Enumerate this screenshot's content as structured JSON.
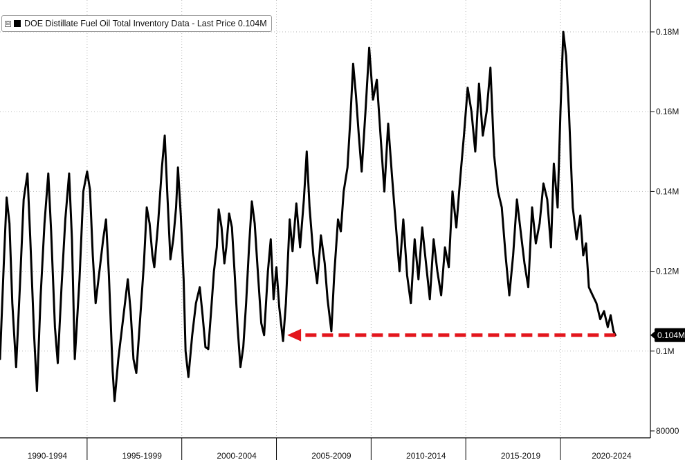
{
  "chart_data": {
    "type": "line",
    "title": "",
    "xlabel": "",
    "ylabel": "",
    "legend": {
      "label": "DOE Distillate Fuel Oil Total Inventory Data - Last Price 0.104M",
      "placement": "top-left",
      "toggle_symbol": "⊞"
    },
    "xlim": [
      1990.0,
      2024.35
    ],
    "ylim": [
      80000,
      185000
    ],
    "grid": true,
    "x_ticks": [
      {
        "label": "1990-1994",
        "center": 1992.5
      },
      {
        "label": "1995-1999",
        "center": 1997.5
      },
      {
        "label": "2000-2004",
        "center": 2002.5
      },
      {
        "label": "2005-2009",
        "center": 2007.5
      },
      {
        "label": "2010-2014",
        "center": 2012.5
      },
      {
        "label": "2015-2019",
        "center": 2017.5
      },
      {
        "label": "2020-2024",
        "center": 2022.3
      }
    ],
    "x_gridlines": [
      1994.6,
      1999.6,
      2004.6,
      2009.6,
      2014.6,
      2019.6
    ],
    "y_ticks": [
      {
        "value": 180000,
        "label": "0.18M"
      },
      {
        "value": 160000,
        "label": "0.16M"
      },
      {
        "value": 140000,
        "label": "0.14M"
      },
      {
        "value": 120000,
        "label": "0.12M"
      },
      {
        "value": 100000,
        "label": "0.1M"
      },
      {
        "value": 80000,
        "label": "80000"
      }
    ],
    "last_price": {
      "value": 104000,
      "label": "0.104M"
    },
    "series": [
      {
        "name": "DOE Distillate Fuel Oil Total Inventory Data",
        "color": "#000000",
        "points": [
          [
            1990.0,
            98000
          ],
          [
            1990.2,
            122000
          ],
          [
            1990.35,
            138500
          ],
          [
            1990.5,
            132000
          ],
          [
            1990.65,
            112000
          ],
          [
            1990.85,
            96000
          ],
          [
            1991.05,
            116000
          ],
          [
            1991.25,
            138000
          ],
          [
            1991.45,
            144500
          ],
          [
            1991.6,
            128000
          ],
          [
            1991.8,
            104000
          ],
          [
            1991.95,
            90000
          ],
          [
            1992.15,
            114000
          ],
          [
            1992.35,
            132000
          ],
          [
            1992.55,
            144500
          ],
          [
            1992.7,
            130000
          ],
          [
            1992.9,
            106000
          ],
          [
            1993.05,
            97000
          ],
          [
            1993.25,
            116000
          ],
          [
            1993.45,
            133000
          ],
          [
            1993.65,
            144500
          ],
          [
            1993.8,
            128000
          ],
          [
            1993.95,
            98000
          ],
          [
            1994.2,
            118000
          ],
          [
            1994.4,
            140000
          ],
          [
            1994.6,
            145000
          ],
          [
            1994.75,
            140500
          ],
          [
            1994.9,
            124000
          ],
          [
            1995.05,
            112000
          ],
          [
            1995.25,
            120000
          ],
          [
            1995.45,
            128000
          ],
          [
            1995.6,
            133000
          ],
          [
            1995.75,
            119000
          ],
          [
            1995.95,
            95000
          ],
          [
            1996.05,
            87500
          ],
          [
            1996.25,
            98000
          ],
          [
            1996.45,
            106000
          ],
          [
            1996.6,
            112000
          ],
          [
            1996.75,
            118000
          ],
          [
            1996.9,
            110000
          ],
          [
            1997.05,
            98000
          ],
          [
            1997.2,
            94500
          ],
          [
            1997.4,
            108000
          ],
          [
            1997.6,
            122000
          ],
          [
            1997.75,
            136000
          ],
          [
            1997.9,
            132000
          ],
          [
            1998.05,
            124000
          ],
          [
            1998.15,
            121000
          ],
          [
            1998.35,
            132000
          ],
          [
            1998.55,
            146000
          ],
          [
            1998.7,
            154000
          ],
          [
            1998.85,
            138000
          ],
          [
            1999.0,
            123000
          ],
          [
            1999.15,
            128000
          ],
          [
            1999.3,
            136000
          ],
          [
            1999.4,
            146000
          ],
          [
            1999.55,
            134000
          ],
          [
            1999.7,
            118000
          ],
          [
            1999.8,
            100000
          ],
          [
            1999.95,
            93500
          ],
          [
            2000.15,
            104000
          ],
          [
            2000.35,
            112000
          ],
          [
            2000.55,
            116000
          ],
          [
            2000.7,
            109000
          ],
          [
            2000.85,
            101000
          ],
          [
            2001.0,
            100500
          ],
          [
            2001.15,
            110000
          ],
          [
            2001.3,
            120000
          ],
          [
            2001.45,
            126000
          ],
          [
            2001.55,
            135500
          ],
          [
            2001.7,
            131000
          ],
          [
            2001.85,
            122000
          ],
          [
            2001.95,
            126000
          ],
          [
            2002.1,
            134500
          ],
          [
            2002.25,
            131000
          ],
          [
            2002.4,
            119000
          ],
          [
            2002.55,
            106000
          ],
          [
            2002.7,
            96000
          ],
          [
            2002.85,
            101000
          ],
          [
            2003.0,
            112000
          ],
          [
            2003.15,
            126000
          ],
          [
            2003.3,
            137500
          ],
          [
            2003.45,
            132000
          ],
          [
            2003.6,
            121000
          ],
          [
            2003.8,
            107000
          ],
          [
            2003.95,
            104000
          ],
          [
            2004.15,
            120000
          ],
          [
            2004.3,
            128000
          ],
          [
            2004.45,
            113000
          ],
          [
            2004.6,
            121000
          ],
          [
            2004.75,
            111000
          ],
          [
            2004.95,
            102500
          ],
          [
            2005.1,
            112000
          ],
          [
            2005.3,
            133000
          ],
          [
            2005.45,
            125000
          ],
          [
            2005.65,
            137000
          ],
          [
            2005.85,
            126000
          ],
          [
            2006.05,
            138000
          ],
          [
            2006.2,
            150000
          ],
          [
            2006.35,
            136000
          ],
          [
            2006.55,
            124000
          ],
          [
            2006.75,
            117000
          ],
          [
            2006.95,
            129000
          ],
          [
            2007.15,
            122000
          ],
          [
            2007.3,
            113000
          ],
          [
            2007.5,
            105000
          ],
          [
            2007.65,
            119000
          ],
          [
            2007.85,
            133000
          ],
          [
            2008.0,
            130000
          ],
          [
            2008.15,
            140000
          ],
          [
            2008.35,
            146000
          ],
          [
            2008.5,
            158000
          ],
          [
            2008.65,
            172000
          ],
          [
            2008.8,
            164000
          ],
          [
            2008.95,
            154000
          ],
          [
            2009.1,
            145000
          ],
          [
            2009.3,
            160000
          ],
          [
            2009.5,
            176000
          ],
          [
            2009.7,
            163000
          ],
          [
            2009.9,
            168000
          ],
          [
            2010.1,
            154000
          ],
          [
            2010.3,
            140000
          ],
          [
            2010.5,
            157000
          ],
          [
            2010.7,
            144000
          ],
          [
            2010.9,
            132000
          ],
          [
            2011.1,
            120000
          ],
          [
            2011.3,
            133000
          ],
          [
            2011.5,
            119000
          ],
          [
            2011.7,
            112000
          ],
          [
            2011.9,
            128000
          ],
          [
            2012.1,
            118000
          ],
          [
            2012.3,
            131000
          ],
          [
            2012.5,
            122000
          ],
          [
            2012.7,
            113000
          ],
          [
            2012.9,
            128000
          ],
          [
            2013.1,
            120000
          ],
          [
            2013.3,
            114000
          ],
          [
            2013.5,
            126000
          ],
          [
            2013.7,
            121000
          ],
          [
            2013.9,
            140000
          ],
          [
            2014.1,
            131000
          ],
          [
            2014.3,
            143000
          ],
          [
            2014.5,
            154000
          ],
          [
            2014.7,
            166000
          ],
          [
            2014.9,
            160000
          ],
          [
            2015.1,
            150000
          ],
          [
            2015.3,
            167000
          ],
          [
            2015.5,
            154000
          ],
          [
            2015.7,
            160000
          ],
          [
            2015.9,
            171000
          ],
          [
            2016.1,
            149000
          ],
          [
            2016.3,
            140000
          ],
          [
            2016.5,
            136000
          ],
          [
            2016.7,
            124000
          ],
          [
            2016.9,
            114000
          ],
          [
            2017.1,
            124000
          ],
          [
            2017.3,
            138000
          ],
          [
            2017.5,
            130000
          ],
          [
            2017.7,
            122000
          ],
          [
            2017.9,
            116000
          ],
          [
            2018.1,
            136000
          ],
          [
            2018.3,
            127000
          ],
          [
            2018.5,
            132000
          ],
          [
            2018.7,
            142000
          ],
          [
            2018.9,
            138000
          ],
          [
            2019.1,
            126000
          ],
          [
            2019.25,
            147000
          ],
          [
            2019.45,
            136000
          ],
          [
            2019.6,
            160000
          ],
          [
            2019.75,
            180000
          ],
          [
            2019.9,
            174000
          ],
          [
            2020.05,
            160000
          ],
          [
            2020.25,
            136000
          ],
          [
            2020.45,
            128000
          ],
          [
            2020.65,
            134000
          ],
          [
            2020.8,
            124000
          ],
          [
            2020.95,
            127000
          ],
          [
            2021.1,
            116000
          ],
          [
            2021.3,
            114000
          ],
          [
            2021.5,
            112000
          ],
          [
            2021.7,
            108000
          ],
          [
            2021.9,
            110000
          ],
          [
            2022.1,
            106000
          ],
          [
            2022.25,
            109000
          ],
          [
            2022.4,
            105000
          ],
          [
            2022.5,
            104000
          ]
        ]
      }
    ]
  }
}
